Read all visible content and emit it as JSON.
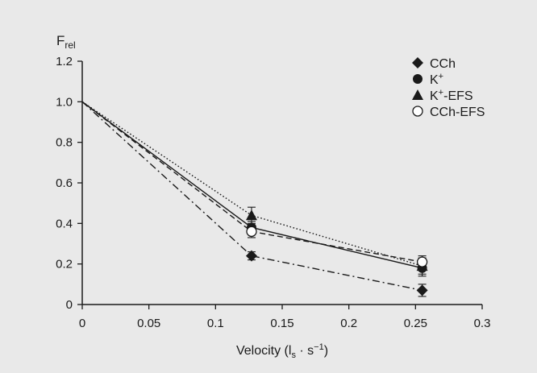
{
  "chart_data": {
    "type": "line",
    "title": "",
    "ylabel": {
      "main": "F",
      "sub": "rel"
    },
    "xlabel": {
      "pre": "Velocity (l",
      "sub": "s",
      "mid": " · s",
      "sup": "−1",
      "post": ")"
    },
    "xlim": [
      0,
      0.3
    ],
    "ylim": [
      0,
      1.2
    ],
    "xticks": [
      0,
      0.05,
      0.1,
      0.15,
      0.2,
      0.25,
      0.3
    ],
    "xtick_labels": [
      "0",
      "0.05",
      "0.1",
      "0.15",
      "0.2",
      "0.25",
      "0.3"
    ],
    "yticks": [
      0,
      0.2,
      0.4,
      0.6,
      0.8,
      1.0,
      1.2
    ],
    "ytick_labels": [
      "0",
      "0.2",
      "0.4",
      "0.6",
      "0.8",
      "1.0",
      "1.2"
    ],
    "grid": false,
    "legend_position": "top-right",
    "x": [
      0,
      0.127,
      0.255
    ],
    "series": [
      {
        "name": "CCh",
        "legend": {
          "main": "CCh"
        },
        "marker": "diamond",
        "line": "dashdot",
        "values": [
          1.0,
          0.24,
          0.07
        ],
        "errors": [
          0,
          0.02,
          0.03
        ]
      },
      {
        "name": "K+",
        "legend": {
          "main": "K",
          "sup": "+"
        },
        "marker": "circle",
        "line": "solid",
        "values": [
          1.0,
          0.38,
          0.18
        ],
        "errors": [
          0,
          0.03,
          0.04
        ]
      },
      {
        "name": "K+-EFS",
        "legend": {
          "main": "K",
          "sup": "+",
          "post": "-EFS"
        },
        "marker": "triangle",
        "line": "dotted",
        "values": [
          1.0,
          0.44,
          0.19
        ],
        "errors": [
          0,
          0.04,
          0.04
        ]
      },
      {
        "name": "CCh-EFS",
        "legend": {
          "main": "CCh-EFS"
        },
        "marker": "open-circle",
        "line": "dashed",
        "values": [
          1.0,
          0.36,
          0.21
        ],
        "errors": [
          0,
          0.03,
          0.03
        ]
      }
    ],
    "colors": {
      "background": "#e9e9e9",
      "ink": "#1a1a1a",
      "marker_fill_open": "#ffffff"
    }
  }
}
